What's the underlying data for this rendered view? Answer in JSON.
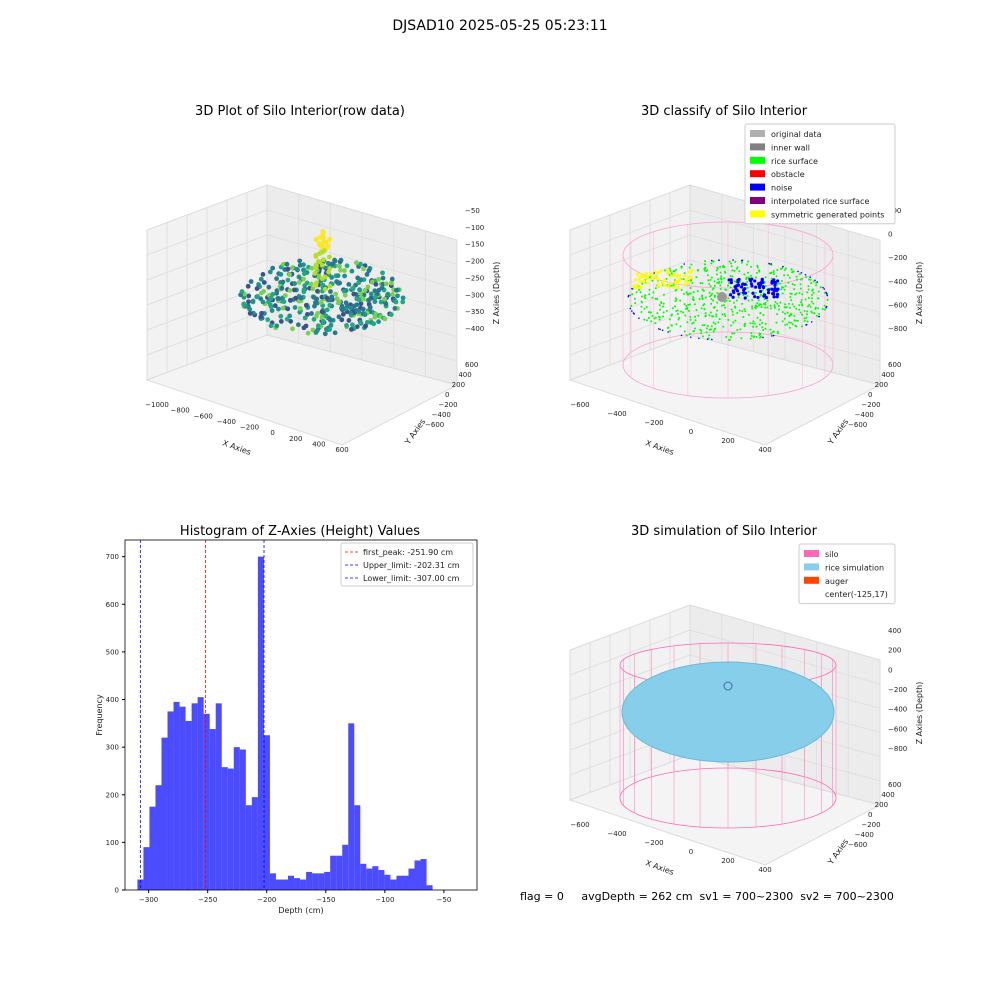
{
  "suptitle": "DJSAD10 2025-05-25 05:23:11",
  "panels": {
    "raw": {
      "title": "3D Plot of Silo Interior(row data)",
      "x_ticks": [
        "−1000",
        "−800",
        "−600",
        "−400",
        "−200",
        "0",
        "200",
        "400",
        "600"
      ],
      "y_ticks": [
        "600",
        "400",
        "200",
        "0",
        "−200",
        "−400",
        "−600"
      ],
      "z_ticks": [
        "−50",
        "−100",
        "−150",
        "−200",
        "−250",
        "−300",
        "−350",
        "−400"
      ],
      "xlabel": "X Axies",
      "ylabel": "Y Axies",
      "zlabel": "Z Axies (Depth)"
    },
    "classify": {
      "title": "3D classify of Silo Interior",
      "legend": [
        {
          "label": "original data",
          "color": "#b0b0b0"
        },
        {
          "label": "inner wall",
          "color": "#808080"
        },
        {
          "label": "rice surface",
          "color": "#00ff00"
        },
        {
          "label": "obstacle",
          "color": "#ff0000"
        },
        {
          "label": "noise",
          "color": "#0000ff"
        },
        {
          "label": "interpolated rice surface",
          "color": "#800080"
        },
        {
          "label": "symmetric generated points",
          "color": "#ffff00"
        }
      ],
      "x_ticks": [
        "−600",
        "−400",
        "−200",
        "0",
        "200",
        "400"
      ],
      "y_ticks": [
        "600",
        "400",
        "200",
        "0",
        "−200",
        "−400",
        "−600"
      ],
      "z_ticks": [
        "200",
        "0",
        "−200",
        "−400",
        "−600",
        "−800"
      ],
      "xlabel": "X Axies",
      "ylabel": "Y Axies",
      "zlabel": "Z Axies (Depth)"
    },
    "simulation": {
      "title": "3D simulation of Silo Interior",
      "legend": [
        {
          "label": "silo",
          "color": "#ff69b4"
        },
        {
          "label": "rice simulation",
          "color": "#87ceeb"
        },
        {
          "label": "auger",
          "color": "#ff4500"
        },
        {
          "label": "center(-125,17)",
          "color": ""
        }
      ],
      "x_ticks": [
        "−600",
        "−400",
        "−200",
        "0",
        "200",
        "400"
      ],
      "y_ticks": [
        "600",
        "400",
        "200",
        "0",
        "−200",
        "−400",
        "−600"
      ],
      "z_ticks": [
        "400",
        "200",
        "0",
        "−200",
        "−400",
        "−600",
        "−800"
      ],
      "xlabel": "X Axies",
      "ylabel": "Y Axies",
      "zlabel": "Z Axies (Depth)"
    }
  },
  "stats_text": "flag = 0     avgDepth = 262 cm  sv1 = 700~2300  sv2 = 700~2300",
  "chart_data": {
    "type": "bar",
    "title": "Histogram of Z-Axies (Height) Values",
    "xlabel": "Depth (cm)",
    "ylabel": "Frequency",
    "xlim": [
      -320,
      -22
    ],
    "ylim": [
      0,
      735
    ],
    "x_ticks": [
      -300,
      -250,
      -200,
      -150,
      -100,
      -50
    ],
    "y_ticks": [
      0,
      100,
      200,
      300,
      400,
      500,
      600,
      700
    ],
    "bin_start": -309.5,
    "bin_width": 5.1,
    "values": [
      22,
      90,
      175,
      220,
      320,
      375,
      395,
      385,
      355,
      392,
      405,
      370,
      338,
      392,
      258,
      255,
      300,
      295,
      178,
      195,
      700,
      325,
      35,
      22,
      22,
      30,
      25,
      22,
      38,
      35,
      35,
      38,
      72,
      72,
      95,
      350,
      178,
      55,
      45,
      50,
      42,
      32,
      22,
      30,
      30,
      45,
      62,
      65,
      10
    ],
    "bar_color": "#0000ff",
    "series": [
      {
        "name": "first_peak: -251.90 cm",
        "x": -251.9,
        "color": "#ff0000"
      },
      {
        "name": "Upper_limit: -202.31 cm",
        "x": -202.31,
        "color": "#0000ff"
      },
      {
        "name": "Lower_limit: -307.00 cm",
        "x": -307.0,
        "color": "#0000ff"
      }
    ]
  }
}
